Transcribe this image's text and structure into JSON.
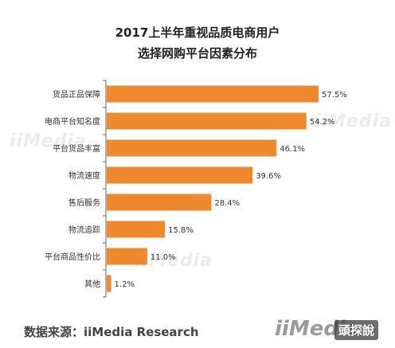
{
  "title_lines": [
    "2017上半年重视品质电商用户",
    "选择网购平台因素分布"
  ],
  "source": "数据来源：iiMedia Research",
  "watermark": "iiMedia",
  "corner_badge": "頭探說",
  "colors": {
    "bar": "#ee8a2d",
    "axis": "#666666",
    "text": "#333333"
  },
  "chart_data": {
    "type": "bar",
    "orientation": "horizontal",
    "title": "2017上半年重视品质电商用户选择网购平台因素分布",
    "categories": [
      "货品正品保障",
      "电商平台知名度",
      "平台货品丰富",
      "物流速度",
      "售后服务",
      "物流追踪",
      "平台商品性价比",
      "其他"
    ],
    "values": [
      57.5,
      54.2,
      46.1,
      39.6,
      28.4,
      15.8,
      11.0,
      1.2
    ],
    "value_labels": [
      "57.5%",
      "54.2%",
      "46.1%",
      "39.6%",
      "28.4%",
      "15.8%",
      "11.0%",
      "1.2%"
    ],
    "unit": "%",
    "xlim": [
      0,
      60
    ],
    "grid": false,
    "legend": "none"
  }
}
